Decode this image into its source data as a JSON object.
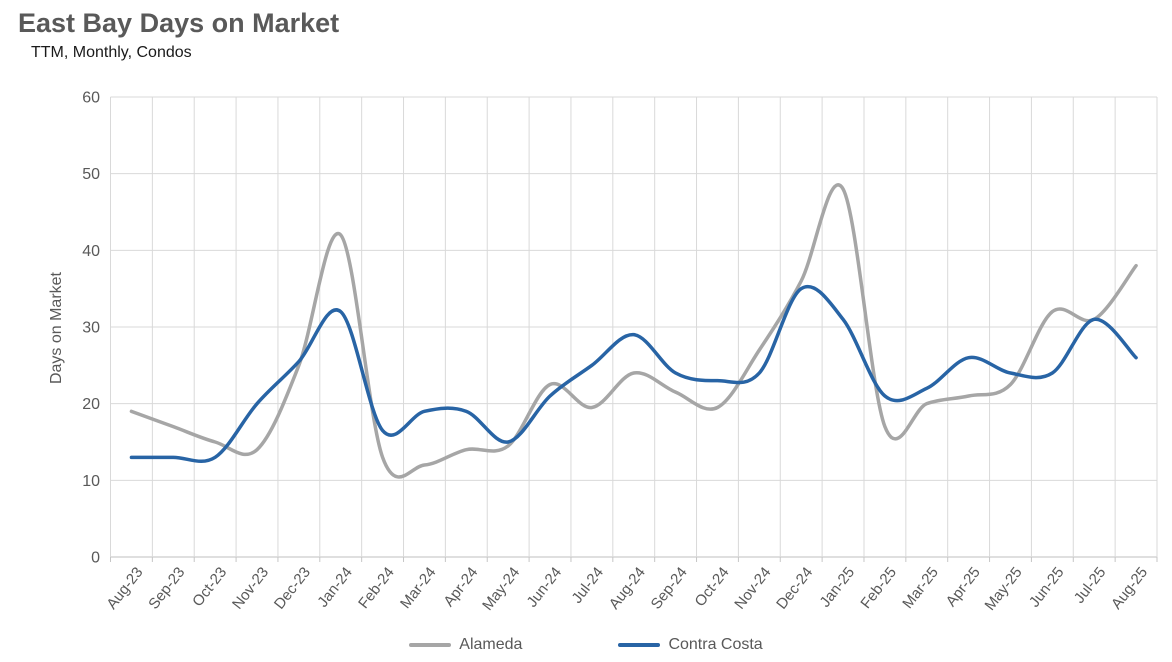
{
  "header": {
    "title": "East Bay Days on Market",
    "subtitle": "TTM, Monthly, Condos"
  },
  "legend": [
    {
      "label": "Alameda",
      "color": "#a6a6a6"
    },
    {
      "label": "Contra Costa",
      "color": "#2864a5"
    }
  ],
  "chart_data": {
    "type": "line",
    "title": "East Bay Days on Market",
    "subtitle": "TTM, Monthly, Condos",
    "xlabel": "",
    "ylabel": "Days on Market",
    "ylim": [
      0,
      60
    ],
    "y_ticks": [
      0,
      10,
      20,
      30,
      40,
      50,
      60
    ],
    "grid": true,
    "smooth_lines": true,
    "legend_position": "bottom",
    "categories": [
      "Aug-23",
      "Sep-23",
      "Oct-23",
      "Nov-23",
      "Dec-23",
      "Jan-24",
      "Feb-24",
      "Mar-24",
      "Apr-24",
      "May-24",
      "Jun-24",
      "Jul-24",
      "Aug-24",
      "Sep-24",
      "Oct-24",
      "Nov-24",
      "Dec-24",
      "Jan-25",
      "Feb-25",
      "Mar-25",
      "Apr-25",
      "May-25",
      "Jun-25",
      "Jul-25",
      "Aug-25"
    ],
    "series": [
      {
        "name": "Alameda",
        "color": "#a6a6a6",
        "values": [
          19,
          17,
          15,
          14,
          25,
          42,
          13,
          12,
          14,
          14.5,
          22.5,
          19.5,
          24,
          21.5,
          19.5,
          27,
          36,
          48,
          17,
          20,
          21,
          22.5,
          32,
          31,
          38
        ]
      },
      {
        "name": "Contra Costa",
        "color": "#2864a5",
        "values": [
          13,
          13,
          13,
          20,
          25.5,
          32,
          16.5,
          19,
          19,
          15,
          21,
          25,
          29,
          24,
          23,
          24,
          35,
          31,
          21,
          22,
          26,
          24,
          24,
          31,
          26
        ]
      }
    ]
  }
}
